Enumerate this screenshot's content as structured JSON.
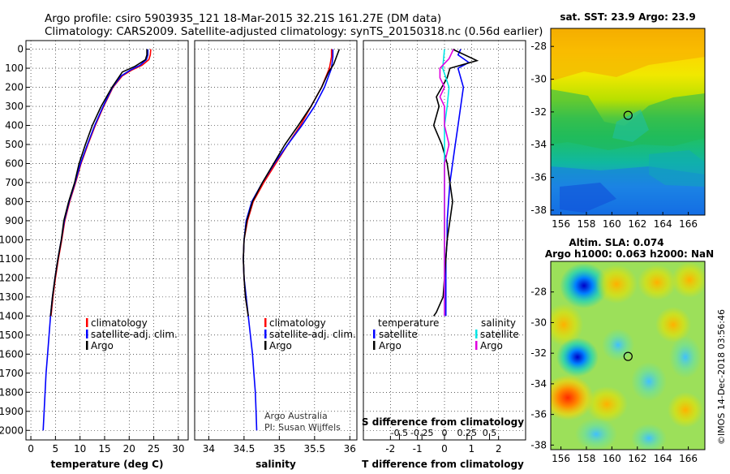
{
  "header": {
    "line1": "Argo profile: csiro 5903935_121 18-Mar-2015 32.21S 161.27E (DM data)",
    "line2": "Climatology: CARS2009. Satellite-adjusted climatology: synTS_20150318.nc (0.56d earlier)"
  },
  "colors": {
    "climatology": "#ff0000",
    "satellite": "#0000ff",
    "argo": "#000000",
    "sat_salinity": "#00e5e5",
    "argo_salinity": "#e000e0"
  },
  "credits": {
    "line1": "Argo Australia",
    "line2": "PI: Susan Wijffels"
  },
  "watermark": "©IMOS 14-Dec-2018 03:56:46",
  "chart_data": [
    {
      "type": "line",
      "id": "temperature",
      "xlabel": "temperature (deg C)",
      "xlim": [
        -1,
        32
      ],
      "ylim": [
        2050,
        0
      ],
      "xticks": [
        0,
        5,
        10,
        15,
        20,
        25,
        30
      ],
      "yticks": [
        0,
        100,
        200,
        300,
        400,
        500,
        600,
        700,
        800,
        900,
        1000,
        1100,
        1200,
        1300,
        1400,
        1500,
        1600,
        1700,
        1800,
        1900,
        2000
      ],
      "legend": {
        "position": "bottom-center",
        "entries": [
          "climatology",
          "satellite-adj. clim.",
          "Argo"
        ]
      },
      "series": [
        {
          "name": "climatology",
          "color": "#ff0000",
          "points": [
            [
              24.4,
              0
            ],
            [
              24.3,
              30
            ],
            [
              24.0,
              55
            ],
            [
              22.6,
              85
            ],
            [
              20.5,
              110
            ],
            [
              18.6,
              140
            ],
            [
              16.7,
              200
            ],
            [
              14.8,
              300
            ],
            [
              13.1,
              400
            ],
            [
              11.6,
              500
            ],
            [
              10.2,
              600
            ],
            [
              9.1,
              700
            ],
            [
              7.9,
              800
            ],
            [
              6.9,
              900
            ],
            [
              6.3,
              1000
            ],
            [
              5.6,
              1100
            ],
            [
              5.0,
              1200
            ],
            [
              4.5,
              1300
            ],
            [
              4.1,
              1400
            ]
          ]
        },
        {
          "name": "satellite-adj. clim.",
          "color": "#0000ff",
          "points": [
            [
              23.8,
              0
            ],
            [
              23.8,
              30
            ],
            [
              23.5,
              55
            ],
            [
              22.2,
              85
            ],
            [
              20.2,
              110
            ],
            [
              18.4,
              140
            ],
            [
              16.6,
              200
            ],
            [
              14.7,
              300
            ],
            [
              13.0,
              400
            ],
            [
              11.5,
              500
            ],
            [
              10.1,
              600
            ],
            [
              9.0,
              700
            ],
            [
              7.8,
              800
            ],
            [
              6.8,
              900
            ],
            [
              6.2,
              1000
            ],
            [
              5.5,
              1100
            ],
            [
              4.9,
              1200
            ],
            [
              4.4,
              1300
            ],
            [
              4.0,
              1400
            ],
            [
              3.7,
              1500
            ],
            [
              3.4,
              1600
            ],
            [
              3.1,
              1700
            ],
            [
              2.9,
              1800
            ],
            [
              2.7,
              1900
            ],
            [
              2.5,
              2000
            ]
          ]
        },
        {
          "name": "Argo",
          "color": "#000000",
          "points": [
            [
              23.6,
              0
            ],
            [
              23.6,
              30
            ],
            [
              23.3,
              55
            ],
            [
              21.2,
              90
            ],
            [
              18.6,
              120
            ],
            [
              16.5,
              200
            ],
            [
              14.3,
              300
            ],
            [
              12.5,
              400
            ],
            [
              11.1,
              500
            ],
            [
              9.8,
              600
            ],
            [
              8.9,
              700
            ],
            [
              7.7,
              800
            ],
            [
              6.7,
              900
            ],
            [
              6.2,
              1000
            ],
            [
              5.5,
              1100
            ],
            [
              4.9,
              1200
            ],
            [
              4.4,
              1300
            ],
            [
              4.0,
              1400
            ]
          ]
        }
      ]
    },
    {
      "type": "line",
      "id": "salinity",
      "xlabel": "salinity",
      "xlim": [
        33.8,
        36.1
      ],
      "ylim": [
        2050,
        0
      ],
      "xticks": [
        34,
        34.5,
        35,
        35.5,
        36
      ],
      "legend": {
        "position": "bottom-center",
        "entries": [
          "climatology",
          "satellite-adj. clim.",
          "Argo"
        ]
      },
      "series": [
        {
          "name": "climatology",
          "color": "#ff0000",
          "points": [
            [
              35.74,
              0
            ],
            [
              35.74,
              40
            ],
            [
              35.71,
              100
            ],
            [
              35.6,
              200
            ],
            [
              35.45,
              300
            ],
            [
              35.3,
              400
            ],
            [
              35.12,
              500
            ],
            [
              34.95,
              600
            ],
            [
              34.78,
              700
            ],
            [
              34.63,
              800
            ],
            [
              34.55,
              900
            ],
            [
              34.5,
              1000
            ],
            [
              34.49,
              1100
            ],
            [
              34.5,
              1200
            ],
            [
              34.52,
              1300
            ],
            [
              34.56,
              1400
            ]
          ]
        },
        {
          "name": "satellite-adj. clim.",
          "color": "#0000ff",
          "points": [
            [
              35.76,
              0
            ],
            [
              35.76,
              40
            ],
            [
              35.74,
              100
            ],
            [
              35.64,
              200
            ],
            [
              35.5,
              300
            ],
            [
              35.32,
              400
            ],
            [
              35.12,
              500
            ],
            [
              34.93,
              600
            ],
            [
              34.76,
              700
            ],
            [
              34.61,
              800
            ],
            [
              34.53,
              900
            ],
            [
              34.5,
              1000
            ],
            [
              34.49,
              1100
            ],
            [
              34.5,
              1200
            ],
            [
              34.53,
              1300
            ],
            [
              34.56,
              1400
            ],
            [
              34.59,
              1500
            ],
            [
              34.62,
              1600
            ],
            [
              34.64,
              1700
            ],
            [
              34.66,
              1800
            ],
            [
              34.67,
              1900
            ],
            [
              34.68,
              2000
            ]
          ]
        },
        {
          "name": "Argo",
          "color": "#000000",
          "points": [
            [
              35.85,
              0
            ],
            [
              35.82,
              30
            ],
            [
              35.77,
              80
            ],
            [
              35.7,
              120
            ],
            [
              35.6,
              200
            ],
            [
              35.45,
              300
            ],
            [
              35.27,
              400
            ],
            [
              35.08,
              500
            ],
            [
              34.92,
              600
            ],
            [
              34.76,
              700
            ],
            [
              34.62,
              800
            ],
            [
              34.54,
              900
            ],
            [
              34.5,
              1000
            ],
            [
              34.49,
              1100
            ],
            [
              34.5,
              1200
            ],
            [
              34.52,
              1300
            ],
            [
              34.56,
              1400
            ]
          ]
        }
      ]
    },
    {
      "type": "line",
      "id": "differences",
      "xlabel": "T difference from climatology",
      "xlabel2": "S difference from climatology",
      "xlim": [
        -3,
        3
      ],
      "ylim": [
        2050,
        0
      ],
      "xticks": [
        -2,
        -1,
        0,
        1,
        2
      ],
      "sticks": [
        -0.5,
        -0.25,
        0,
        0.25,
        0.5
      ],
      "stick_labels": [
        "-0.5",
        "-0.25",
        "0",
        "0.25",
        "0.5"
      ],
      "legend": {
        "position": "bottom",
        "temperature_header": "temperature",
        "salinity_header": "salinity",
        "entries": [
          "satellite",
          "Argo"
        ]
      },
      "series": [
        {
          "name": "temperature satellite",
          "color": "#0000ff",
          "points": [
            [
              0.6,
              0
            ],
            [
              0.5,
              30
            ],
            [
              0.9,
              70
            ],
            [
              0.5,
              100
            ],
            [
              0.7,
              200
            ],
            [
              0.6,
              300
            ],
            [
              0.5,
              400
            ],
            [
              0.4,
              500
            ],
            [
              0.3,
              600
            ],
            [
              0.2,
              700
            ],
            [
              0.15,
              800
            ],
            [
              0.1,
              900
            ],
            [
              0.1,
              1000
            ],
            [
              0.05,
              1100
            ],
            [
              0.05,
              1200
            ],
            [
              0.05,
              1300
            ],
            [
              0.05,
              1400
            ]
          ]
        },
        {
          "name": "temperature Argo",
          "color": "#000000",
          "points": [
            [
              0.3,
              0
            ],
            [
              1.2,
              60
            ],
            [
              0.2,
              100
            ],
            [
              0.1,
              150
            ],
            [
              -0.1,
              200
            ],
            [
              -0.3,
              250
            ],
            [
              -0.2,
              300
            ],
            [
              -0.4,
              400
            ],
            [
              -0.1,
              500
            ],
            [
              0.1,
              600
            ],
            [
              0.2,
              700
            ],
            [
              0.3,
              800
            ],
            [
              0.2,
              900
            ],
            [
              0.1,
              1000
            ],
            [
              0.05,
              1100
            ],
            [
              0.0,
              1200
            ],
            [
              -0.05,
              1300
            ],
            [
              -0.3,
              1380
            ],
            [
              -0.4,
              1400
            ]
          ]
        },
        {
          "name": "salinity satellite",
          "color": "#00e5e5",
          "points": [
            [
              0.0,
              0
            ],
            [
              -0.02,
              100
            ],
            [
              0.05,
              200
            ],
            [
              0.03,
              300
            ],
            [
              0.0,
              400
            ],
            [
              0.0,
              500
            ],
            [
              0.0,
              600
            ],
            [
              0.0,
              700
            ],
            [
              0.0,
              800
            ],
            [
              0.0,
              900
            ],
            [
              0.0,
              1000
            ],
            [
              0.0,
              1100
            ],
            [
              0.0,
              1200
            ],
            [
              0.0,
              1300
            ],
            [
              0.0,
              1400
            ]
          ]
        },
        {
          "name": "salinity Argo",
          "color": "#e000e0",
          "points": [
            [
              0.1,
              0
            ],
            [
              0.05,
              50
            ],
            [
              -0.05,
              100
            ],
            [
              -0.05,
              150
            ],
            [
              0.0,
              200
            ],
            [
              -0.05,
              250
            ],
            [
              0.0,
              300
            ],
            [
              0.0,
              400
            ],
            [
              0.05,
              500
            ],
            [
              0.0,
              600
            ],
            [
              0.0,
              700
            ],
            [
              0.0,
              800
            ],
            [
              0.0,
              900
            ],
            [
              0.0,
              1000
            ],
            [
              0.0,
              1100
            ],
            [
              0.0,
              1200
            ],
            [
              0.0,
              1300
            ],
            [
              0.0,
              1400
            ]
          ]
        }
      ]
    },
    {
      "type": "heatmap",
      "id": "sst_map",
      "title": "sat. SST: 23.9 Argo: 23.9",
      "xticks": [
        156,
        158,
        160,
        162,
        164,
        166
      ],
      "yticks": [
        -28,
        -30,
        -32,
        -34,
        -36,
        -38
      ],
      "marker": {
        "lon": 161.27,
        "lat": -32.21
      }
    },
    {
      "type": "heatmap",
      "id": "sla_map",
      "title": "Altim. SLA: 0.074",
      "subtitle": "Argo h1000: 0.063 h2000: NaN",
      "xticks": [
        156,
        158,
        160,
        162,
        164,
        166
      ],
      "yticks": [
        -28,
        -30,
        -32,
        -34,
        -36,
        -38
      ],
      "marker": {
        "lon": 161.27,
        "lat": -32.21
      }
    }
  ]
}
